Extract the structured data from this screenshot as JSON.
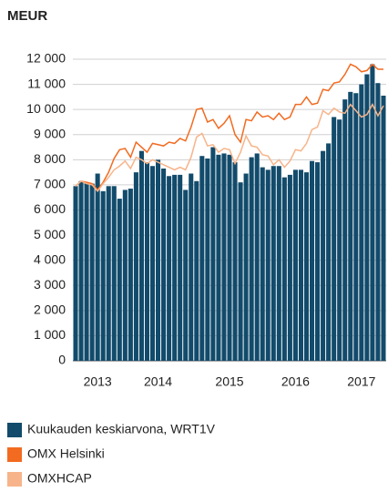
{
  "chart_data": {
    "type": "bar_line",
    "title": "MEUR",
    "categories": [
      null,
      null,
      null,
      null,
      "2013",
      null,
      null,
      null,
      null,
      null,
      null,
      null,
      null,
      null,
      null,
      "2014",
      null,
      null,
      null,
      null,
      null,
      null,
      null,
      null,
      null,
      null,
      null,
      null,
      "2015",
      null,
      null,
      null,
      null,
      null,
      null,
      null,
      null,
      null,
      null,
      null,
      "2016",
      null,
      null,
      null,
      null,
      null,
      null,
      null,
      null,
      null,
      null,
      null,
      "2017",
      null,
      null,
      null,
      null
    ],
    "series": [
      {
        "name": "Kuukauden keskiarvona, WRT1V",
        "type": "bar",
        "color": "#124b6b",
        "values": [
          6950,
          7150,
          7100,
          7050,
          7450,
          6750,
          6950,
          6950,
          6450,
          6800,
          6850,
          7500,
          8350,
          7900,
          7750,
          8000,
          7650,
          7350,
          7400,
          7400,
          6800,
          7450,
          7150,
          8150,
          8050,
          8500,
          8200,
          8250,
          8200,
          7900,
          7100,
          7450,
          8100,
          8250,
          7700,
          7600,
          7750,
          7750,
          7300,
          7400,
          7600,
          7600,
          7500,
          7950,
          7900,
          8350,
          8650,
          9700,
          9600,
          10400,
          10700,
          10650,
          11000,
          11400,
          11800,
          11050,
          10550
        ]
      },
      {
        "name": "OMX Helsinki",
        "type": "line",
        "color": "#f26b21",
        "values": [
          6950,
          7150,
          7100,
          7050,
          6800,
          7100,
          7500,
          8050,
          8400,
          8450,
          8100,
          8700,
          8500,
          8300,
          8650,
          8600,
          8550,
          8700,
          8650,
          8850,
          8750,
          9300,
          10000,
          10050,
          9500,
          9600,
          9250,
          9450,
          9750,
          9000,
          8700,
          9600,
          9550,
          9900,
          9700,
          9750,
          9600,
          9850,
          9600,
          9700,
          10200,
          10200,
          10500,
          10200,
          10250,
          10800,
          10750,
          11050,
          11100,
          11400,
          11800,
          11700,
          11500,
          11550,
          11800,
          11600,
          11600
        ]
      },
      {
        "name": "OMXHCAP",
        "type": "line",
        "color": "#f7b48a",
        "values": [
          6950,
          7150,
          7050,
          7000,
          6750,
          7050,
          7300,
          7600,
          7750,
          7950,
          7650,
          8100,
          8000,
          7850,
          8000,
          7900,
          7800,
          7700,
          7600,
          7700,
          7600,
          8100,
          8900,
          9050,
          8550,
          8600,
          8300,
          8450,
          8400,
          7850,
          8300,
          8950,
          8550,
          8500,
          8200,
          8150,
          7800,
          8000,
          7700,
          7950,
          8400,
          8350,
          8650,
          9200,
          9300,
          9950,
          9800,
          10050,
          9900,
          9850,
          10200,
          9950,
          9700,
          9800,
          10200,
          9750,
          10150
        ]
      }
    ],
    "ylim": [
      0,
      12000
    ],
    "yticks": [
      0,
      {
        "value": 1000,
        "label": "1 000"
      },
      {
        "value": 2000,
        "label": "2 000"
      },
      {
        "value": 3000,
        "label": "3 000"
      },
      {
        "value": 4000,
        "label": "4 000"
      },
      {
        "value": 5000,
        "label": "5 000"
      },
      {
        "value": 6000,
        "label": "6 000"
      },
      {
        "value": 7000,
        "label": "7 000"
      },
      {
        "value": 8000,
        "label": "8 000"
      },
      {
        "value": 9000,
        "label": "9 000"
      },
      {
        "value": 10000,
        "label": "10 000"
      },
      {
        "value": 11000,
        "label": "11 000"
      },
      {
        "value": 12000,
        "label": "12 000"
      }
    ],
    "grid": true,
    "legend": "bottom"
  }
}
